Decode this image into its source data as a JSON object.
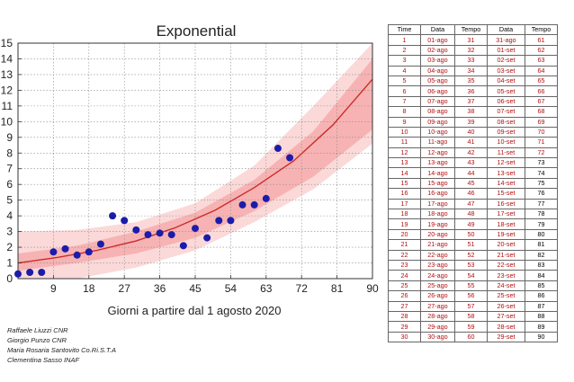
{
  "chart_data": {
    "type": "scatter",
    "title": "Exponential",
    "xlabel": "Giorni a partire dal 1 agosto 2020",
    "ylabel": "",
    "xlim": [
      0,
      90
    ],
    "ylim": [
      0,
      15
    ],
    "x_ticks": [
      9,
      18,
      27,
      36,
      45,
      54,
      63,
      72,
      81,
      90
    ],
    "y_ticks": [
      0,
      1,
      2,
      3,
      4,
      5,
      6,
      7,
      8,
      9,
      10,
      11,
      12,
      13,
      14,
      15
    ],
    "grid": true,
    "colors": {
      "points": "#1c1caa",
      "fit_line": "#cc2b2b",
      "band_inner": "#f7b3b3",
      "band_outer": "#fbd9d9"
    },
    "series": [
      {
        "type": "scatter",
        "x": [
          0,
          3,
          6,
          9,
          12,
          15,
          18,
          21,
          24,
          27,
          30,
          33,
          36,
          39,
          42,
          45,
          48,
          51,
          54,
          57,
          60,
          63,
          66,
          69
        ],
        "y": [
          0.3,
          0.4,
          0.4,
          1.7,
          1.9,
          1.5,
          1.7,
          2.2,
          4.0,
          3.7,
          3.1,
          2.8,
          2.9,
          2.8,
          2.1,
          3.2,
          2.6,
          3.7,
          3.7,
          4.7,
          4.7,
          5.1,
          8.3,
          7.7
        ]
      },
      {
        "type": "line",
        "x": [
          0,
          10,
          20,
          30,
          40,
          50,
          60,
          70,
          80,
          90
        ],
        "y": [
          1.0,
          1.35,
          1.8,
          2.4,
          3.25,
          4.35,
          5.8,
          7.5,
          9.8,
          12.7
        ]
      }
    ],
    "band_inner": {
      "x": [
        0,
        15,
        30,
        45,
        60,
        75,
        90
      ],
      "lower": [
        0.5,
        1.0,
        1.6,
        2.6,
        4.3,
        6.5,
        9.5
      ],
      "upper": [
        1.6,
        2.1,
        3.0,
        4.2,
        6.3,
        9.4,
        14.0
      ]
    },
    "band_outer": {
      "x": [
        0,
        15,
        30,
        45,
        60,
        75,
        90
      ],
      "lower": [
        0.0,
        0.0,
        0.7,
        1.8,
        3.6,
        5.7,
        8.6
      ],
      "upper": [
        3.0,
        3.1,
        3.6,
        4.8,
        7.2,
        11.0,
        15.0
      ]
    }
  },
  "credits": [
    "Raffaele Liuzzi CNR",
    "Giorgio Punzo CNR",
    "Maria Rosaria Santovito Co.Ri.S.T.A",
    "Clementina Sasso INAF"
  ],
  "table": {
    "headers": [
      "Time",
      "Data",
      "Tempo",
      "Data",
      "Tempo"
    ],
    "rows": [
      [
        "1",
        "01-ago",
        "31",
        "31-ago",
        "61"
      ],
      [
        "2",
        "02-ago",
        "32",
        "01-set",
        "62"
      ],
      [
        "3",
        "03-ago",
        "33",
        "02-set",
        "63"
      ],
      [
        "4",
        "04-ago",
        "34",
        "03-set",
        "64"
      ],
      [
        "5",
        "05-ago",
        "35",
        "04-set",
        "65"
      ],
      [
        "6",
        "06-ago",
        "36",
        "05-set",
        "66"
      ],
      [
        "7",
        "07-ago",
        "37",
        "06-set",
        "67"
      ],
      [
        "8",
        "08-ago",
        "38",
        "07-set",
        "68"
      ],
      [
        "9",
        "09-ago",
        "39",
        "08-set",
        "69"
      ],
      [
        "10",
        "10-ago",
        "40",
        "09-set",
        "70"
      ],
      [
        "11",
        "11-ago",
        "41",
        "10-set",
        "71"
      ],
      [
        "12",
        "12-ago",
        "42",
        "11-set",
        "72"
      ],
      [
        "13",
        "13-ago",
        "43",
        "12-set",
        "73"
      ],
      [
        "14",
        "14-ago",
        "44",
        "13-set",
        "74"
      ],
      [
        "15",
        "15-ago",
        "45",
        "14-set",
        "75"
      ],
      [
        "16",
        "16-ago",
        "46",
        "15-set",
        "76"
      ],
      [
        "17",
        "17-ago",
        "47",
        "16-set",
        "77"
      ],
      [
        "18",
        "18-ago",
        "48",
        "17-set",
        "78"
      ],
      [
        "19",
        "19-ago",
        "49",
        "18-set",
        "79"
      ],
      [
        "20",
        "20-ago",
        "50",
        "19-set",
        "80"
      ],
      [
        "21",
        "21-ago",
        "51",
        "20-set",
        "81"
      ],
      [
        "22",
        "22-ago",
        "52",
        "21-set",
        "82"
      ],
      [
        "23",
        "23-ago",
        "53",
        "22-set",
        "83"
      ],
      [
        "24",
        "24-ago",
        "54",
        "23-set",
        "84"
      ],
      [
        "25",
        "25-ago",
        "55",
        "24-set",
        "85"
      ],
      [
        "26",
        "26-ago",
        "56",
        "25-set",
        "86"
      ],
      [
        "27",
        "27-ago",
        "57",
        "26-set",
        "87"
      ],
      [
        "28",
        "28-ago",
        "58",
        "27-set",
        "88"
      ],
      [
        "29",
        "29-ago",
        "59",
        "28-set",
        "89"
      ],
      [
        "30",
        "30-ago",
        "60",
        "29-set",
        "90"
      ]
    ]
  }
}
